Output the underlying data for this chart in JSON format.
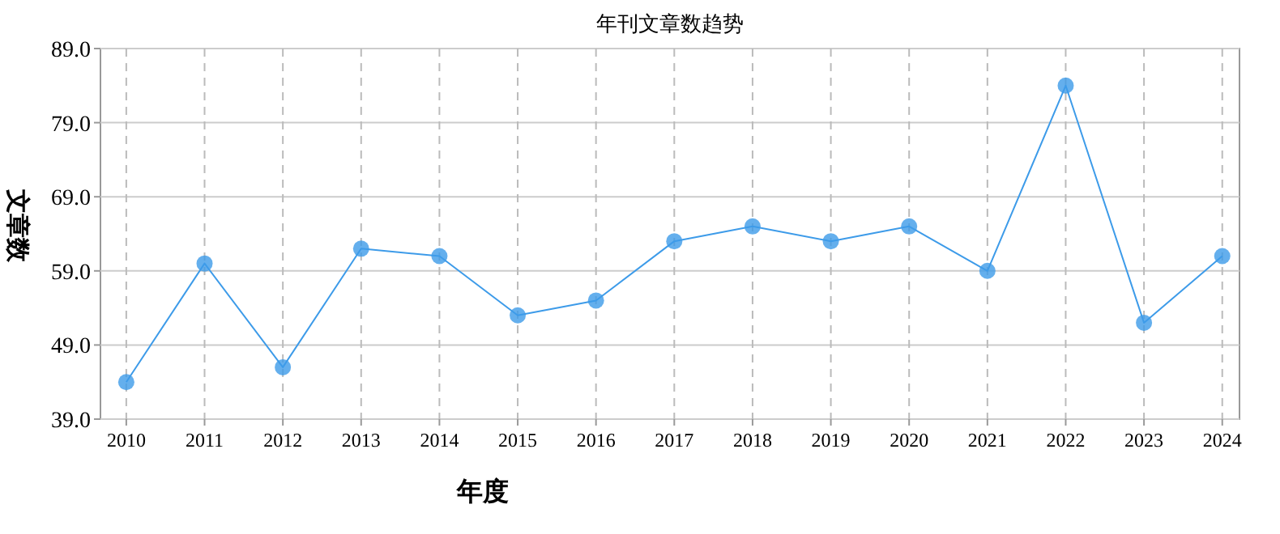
{
  "chart_data": {
    "type": "line",
    "title": "年刊文章数趋势",
    "xlabel": "年度",
    "ylabel": "文章数",
    "categories": [
      "2010",
      "2011",
      "2012",
      "2013",
      "2014",
      "2015",
      "2016",
      "2017",
      "2018",
      "2019",
      "2020",
      "2021",
      "2022",
      "2023",
      "2024"
    ],
    "series": [
      {
        "color": "#3d9be9",
        "values": [
          44,
          60,
          46,
          62,
          61,
          53,
          55,
          63,
          65,
          63,
          65,
          59,
          84,
          52,
          61
        ]
      }
    ],
    "ylim": [
      39,
      89
    ],
    "yticks": [
      {
        "value": 39,
        "label": "39.0"
      },
      {
        "value": 49,
        "label": "49.0"
      },
      {
        "value": 59,
        "label": "59.0"
      },
      {
        "value": 69,
        "label": "69.0"
      },
      {
        "value": 79,
        "label": "79.0"
      },
      {
        "value": 89,
        "label": "89.0"
      }
    ],
    "grid": true,
    "marker": "circle",
    "line_style": "solid"
  }
}
